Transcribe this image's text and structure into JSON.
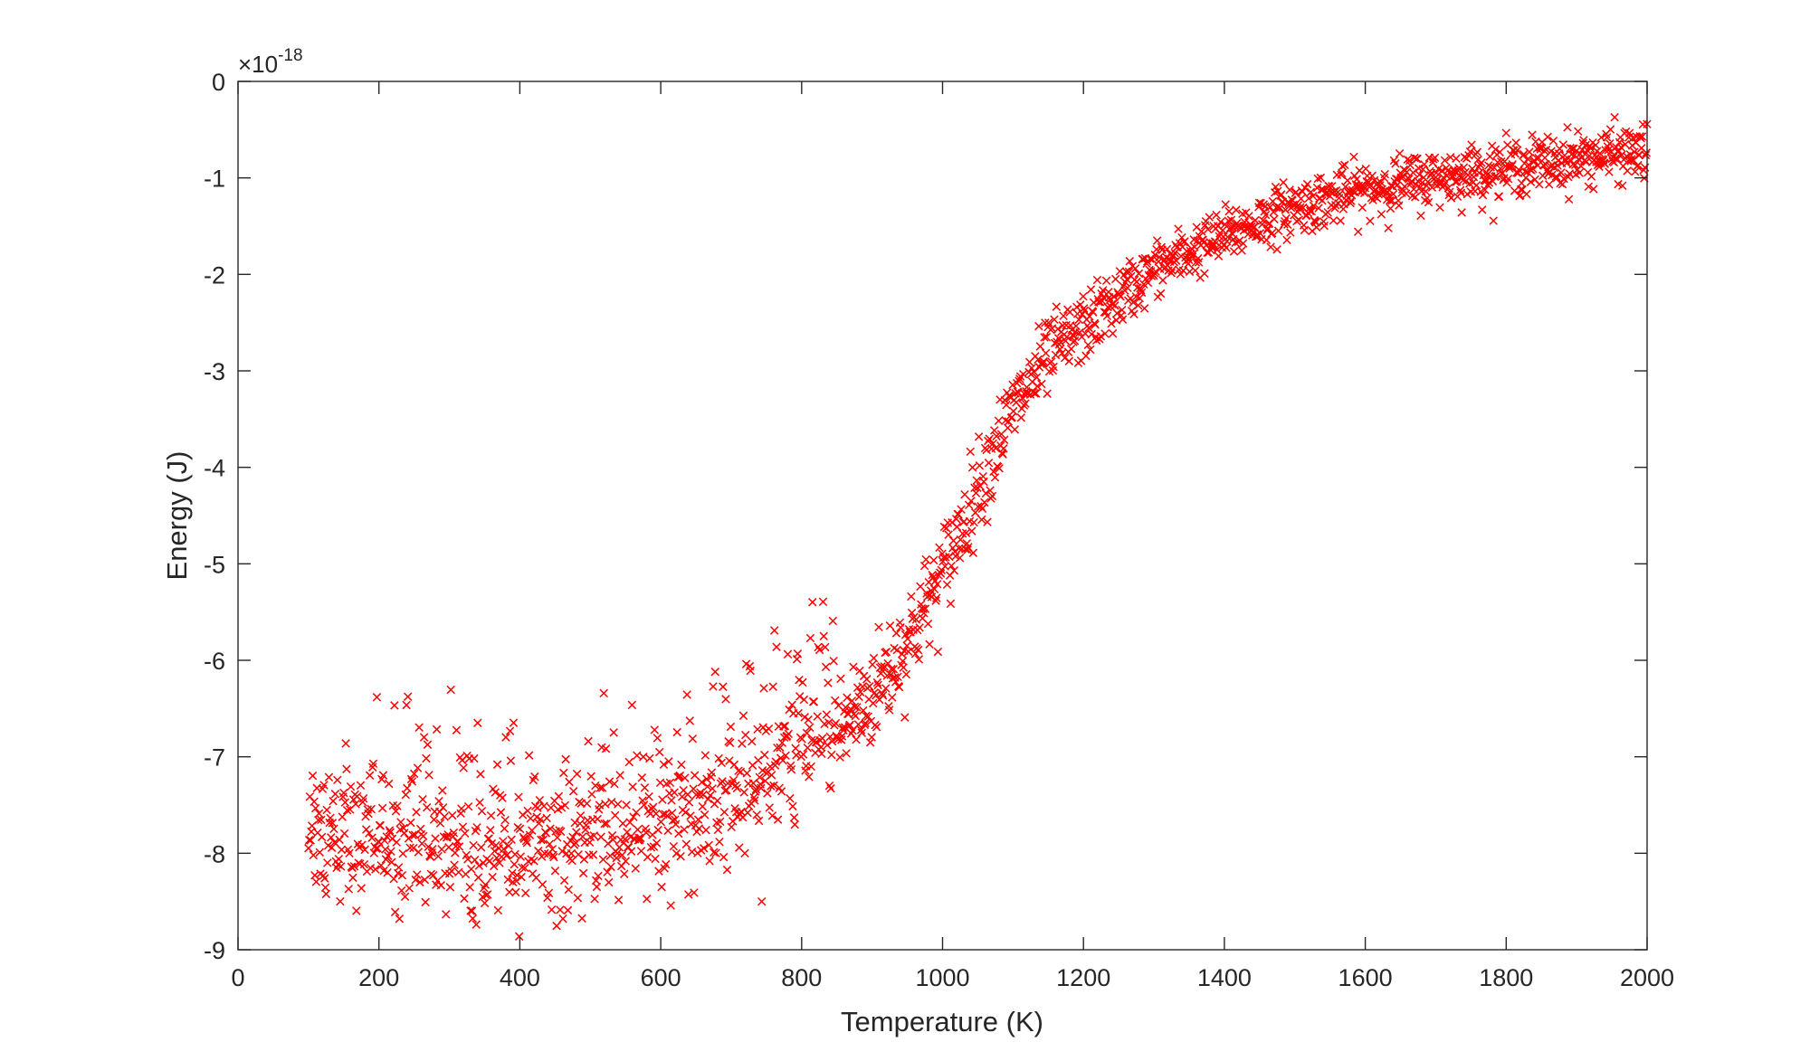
{
  "chart_data": {
    "type": "scatter",
    "title": "",
    "xlabel": "Temperature (K)",
    "ylabel": "Energy (J)",
    "xlim": [
      0,
      2000
    ],
    "ylim": [
      -9,
      0
    ],
    "y_scale_factor_label": "×10",
    "y_scale_exponent": "-18",
    "x_ticks": [
      "0",
      "200",
      "400",
      "600",
      "800",
      "1000",
      "1200",
      "1400",
      "1600",
      "1800",
      "2000"
    ],
    "y_ticks": [
      "0",
      "-1",
      "-2",
      "-3",
      "-4",
      "-5",
      "-6",
      "-7",
      "-8",
      "-9"
    ],
    "grid": false,
    "marker": "x",
    "marker_color": "#ff0000",
    "series": [
      {
        "name": "Energy",
        "n_points": 1900,
        "x_range": [
          100,
          2000
        ],
        "trend": {
          "description": "sigmoidal rise from about -7.9e-18 J near 100 K to about -0.7e-18 J at 2000 K, steepest near 1050 K",
          "x": [
            100,
            200,
            300,
            400,
            500,
            600,
            700,
            800,
            850,
            900,
            950,
            1000,
            1050,
            1100,
            1150,
            1200,
            1300,
            1400,
            1500,
            1600,
            1700,
            1800,
            1900,
            2000
          ],
          "y": [
            -7.85,
            -7.9,
            -7.95,
            -7.95,
            -7.9,
            -7.75,
            -7.45,
            -6.95,
            -6.75,
            -6.35,
            -5.8,
            -5.1,
            -4.2,
            -3.4,
            -2.85,
            -2.55,
            -1.95,
            -1.6,
            -1.3,
            -1.12,
            -1.0,
            -0.9,
            -0.8,
            -0.72
          ]
        },
        "spread_low_T": 0.5,
        "spread_high_T": 0.1
      }
    ]
  }
}
